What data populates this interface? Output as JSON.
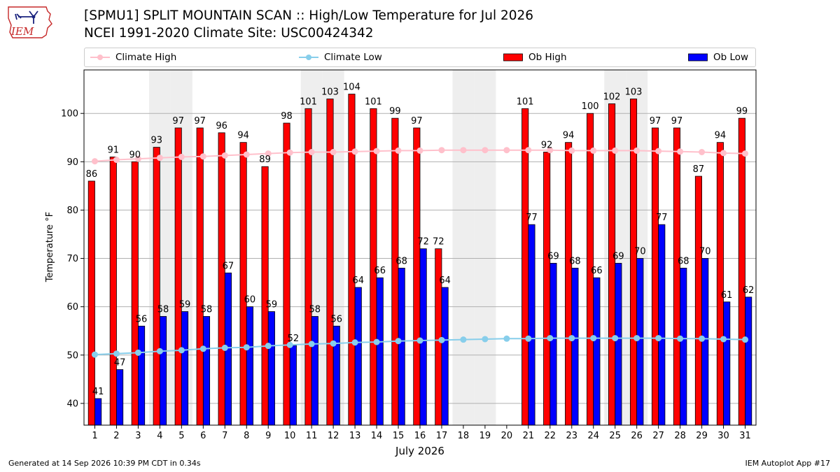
{
  "header": {
    "title_line1": "[SPMU1] SPLIT MOUNTAIN SCAN :: High/Low Temperature for Jul 2026",
    "title_line2": "NCEI 1991-2020 Climate Site: USC00424342",
    "logo_text": "IEM"
  },
  "legend": {
    "climate_high": "Climate High",
    "climate_low": "Climate Low",
    "ob_high": "Ob High",
    "ob_low": "Ob Low"
  },
  "footer": {
    "generated": "Generated at 14 Sep 2026 10:39 PM CDT in 0.34s",
    "app": "IEM Autoplot App #17"
  },
  "colors": {
    "ob_high": "#ff0000",
    "ob_low": "#0000ff",
    "climate_high": "#ffc0cb",
    "climate_low": "#87ceeb",
    "weekend_shade": "#eeeeee",
    "grid": "#b0b0b0"
  },
  "chart_data": {
    "type": "bar",
    "xlabel": "July 2026",
    "ylabel": "Temperature °F",
    "ylim": [
      35.5,
      109
    ],
    "yticks": [
      40,
      50,
      60,
      70,
      80,
      90,
      100
    ],
    "grid": "horizontal",
    "legend_position": "top",
    "x": [
      1,
      2,
      3,
      4,
      5,
      6,
      7,
      8,
      9,
      10,
      11,
      12,
      13,
      14,
      15,
      16,
      17,
      18,
      19,
      20,
      21,
      22,
      23,
      24,
      25,
      26,
      27,
      28,
      29,
      30,
      31
    ],
    "weekend_days": [
      4,
      5,
      11,
      12,
      18,
      19,
      25,
      26
    ],
    "series": [
      {
        "name": "Ob High",
        "kind": "bar",
        "values": [
          86,
          91,
          90,
          93,
          97,
          97,
          96,
          94,
          89,
          98,
          101,
          103,
          104,
          101,
          99,
          97,
          72,
          null,
          null,
          null,
          101,
          92,
          94,
          100,
          102,
          103,
          97,
          97,
          87,
          94,
          99
        ]
      },
      {
        "name": "Ob Low",
        "kind": "bar",
        "values": [
          41,
          47,
          56,
          58,
          59,
          58,
          67,
          60,
          59,
          52,
          58,
          56,
          64,
          66,
          68,
          72,
          64,
          null,
          null,
          null,
          77,
          69,
          68,
          66,
          69,
          70,
          77,
          68,
          70,
          61,
          62
        ]
      },
      {
        "name": "Climate High",
        "kind": "line",
        "values": [
          90.1,
          90.4,
          90.6,
          90.8,
          91.0,
          91.1,
          91.3,
          91.5,
          91.7,
          91.9,
          92.0,
          92.0,
          92.1,
          92.2,
          92.3,
          92.3,
          92.4,
          92.4,
          92.4,
          92.4,
          92.4,
          92.4,
          92.3,
          92.3,
          92.3,
          92.3,
          92.2,
          92.1,
          92.0,
          91.8,
          91.7
        ]
      },
      {
        "name": "Climate Low",
        "kind": "line",
        "values": [
          50.1,
          50.3,
          50.5,
          50.8,
          51.0,
          51.3,
          51.5,
          51.6,
          51.9,
          52.1,
          52.3,
          52.4,
          52.6,
          52.7,
          52.9,
          53.0,
          53.1,
          53.2,
          53.3,
          53.4,
          53.4,
          53.5,
          53.5,
          53.5,
          53.5,
          53.5,
          53.5,
          53.4,
          53.4,
          53.3,
          53.2
        ]
      }
    ]
  }
}
